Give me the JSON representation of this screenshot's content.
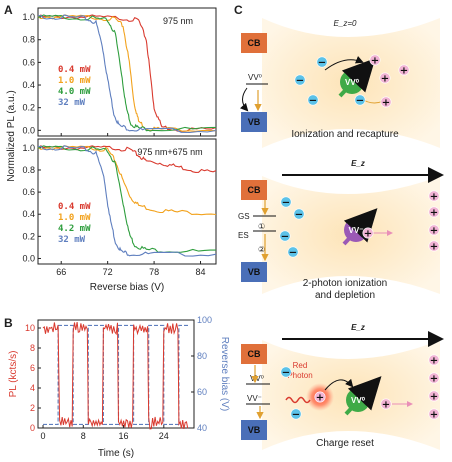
{
  "panel_labels": {
    "a": "A",
    "b": "B",
    "c": "C"
  },
  "colors": {
    "red": "#d93a2f",
    "orange": "#f2a21d",
    "green": "#2f9e3e",
    "blue": "#5f7fbf",
    "cb": "#e0703a",
    "vb": "#4a6fb8",
    "glow": "#fde8c4",
    "nv_green": "#3faa47",
    "nv_purple": "#9b59b6",
    "minus_fill": "#5cc2e8",
    "plus_fill": "#f2b3d4"
  },
  "panelA": {
    "ylabel": "Normalized PL (a.u.)",
    "xlabel": "Reverse bias (V)",
    "top": {
      "annotation": "975 nm",
      "legend": [
        "0.4 mW",
        "1.0 mW",
        "4.0 mW",
        "32 mW"
      ]
    },
    "bottom": {
      "annotation": "975 nm+675 nm",
      "legend": [
        "0.4 mW",
        "1.0 mW",
        "4.2 mW",
        "32 mW"
      ]
    },
    "yticks_labels": [
      "0.0",
      "0.2",
      "0.4",
      "0.6",
      "0.8",
      "1.0"
    ],
    "xticks_labels": [
      "66",
      "72",
      "78",
      "84"
    ]
  },
  "panelB": {
    "ylabel_left": "PL (kcts/s)",
    "ylabel_right": "Reverse bias (V)",
    "xlabel": "Time (s)",
    "left_ticks": [
      "0",
      "2",
      "4",
      "6",
      "8",
      "10"
    ],
    "right_ticks": [
      "40",
      "60",
      "80",
      "100"
    ],
    "x_ticks": [
      "0",
      "8",
      "16",
      "24"
    ]
  },
  "panelC": {
    "scene1": {
      "field": "E_z=0",
      "cb": "CB",
      "vb": "VB",
      "state": "VV⁰",
      "nv": "VV⁰",
      "caption": "Ionization and recapture"
    },
    "scene2": {
      "field": "E_z",
      "cb": "CB",
      "vb": "VB",
      "gs": "GS",
      "es": "ES",
      "step1": "①",
      "step2": "②",
      "nv": "VV⁻",
      "caption1": "2-photon ionization",
      "caption2": "and depletion"
    },
    "scene3": {
      "field": "E_z",
      "cb": "CB",
      "vb": "VB",
      "state1": "VV⁰",
      "state2": "VV⁻",
      "photon1": "Red",
      "photon2": "Photon",
      "nv": "VV⁰",
      "caption": "Charge reset"
    }
  },
  "chart_data": [
    {
      "type": "line",
      "title": "975 nm",
      "xlabel": "Reverse bias (V)",
      "ylabel": "Normalized PL (a.u.)",
      "xlim": [
        63,
        86
      ],
      "ylim": [
        -0.05,
        1.08
      ],
      "series": [
        {
          "name": "0.4 mW",
          "x": [
            63,
            66,
            70,
            74,
            76,
            77,
            77.5,
            78,
            79,
            81,
            86
          ],
          "values": [
            1.0,
            1.0,
            1.0,
            0.99,
            0.97,
            0.8,
            0.5,
            0.2,
            0.03,
            0.01,
            0.01
          ]
        },
        {
          "name": "1.0 mW",
          "x": [
            63,
            66,
            70,
            73,
            74,
            74.8,
            75.4,
            76,
            77,
            79,
            86
          ],
          "values": [
            1.0,
            1.0,
            1.0,
            0.98,
            0.92,
            0.6,
            0.25,
            0.08,
            0.02,
            0.01,
            0.01
          ]
        },
        {
          "name": "4.0 mW",
          "x": [
            63,
            66,
            70,
            72,
            73,
            73.8,
            74.4,
            75,
            76,
            78,
            86
          ],
          "values": [
            1.0,
            1.0,
            0.99,
            0.97,
            0.85,
            0.5,
            0.2,
            0.06,
            0.02,
            0.01,
            0.01
          ]
        },
        {
          "name": "32 mW",
          "x": [
            63,
            66,
            69,
            70.5,
            71.3,
            72,
            72.8,
            73.5,
            75,
            77,
            86
          ],
          "values": [
            1.0,
            1.0,
            0.99,
            0.95,
            0.75,
            0.45,
            0.15,
            0.04,
            0.01,
            0.0,
            0.0
          ]
        }
      ]
    },
    {
      "type": "line",
      "title": "975 nm+675 nm",
      "xlabel": "Reverse bias (V)",
      "ylabel": "Normalized PL (a.u.)",
      "xlim": [
        63,
        86
      ],
      "ylim": [
        -0.05,
        1.08
      ],
      "series": [
        {
          "name": "0.4 mW",
          "x": [
            63,
            66,
            70,
            73,
            75,
            76,
            77,
            79,
            81,
            83,
            86
          ],
          "values": [
            1.0,
            1.0,
            1.0,
            1.0,
            0.98,
            0.93,
            0.88,
            0.86,
            0.83,
            0.8,
            0.78
          ]
        },
        {
          "name": "1.0 mW",
          "x": [
            63,
            66,
            70,
            72,
            73,
            74,
            75,
            76,
            78,
            81,
            86
          ],
          "values": [
            1.0,
            1.0,
            1.0,
            0.98,
            0.88,
            0.7,
            0.55,
            0.48,
            0.44,
            0.42,
            0.41
          ]
        },
        {
          "name": "4.2 mW",
          "x": [
            63,
            66,
            70,
            72,
            73,
            74,
            74.8,
            75.5,
            77,
            80,
            86
          ],
          "values": [
            1.0,
            1.0,
            0.99,
            0.97,
            0.85,
            0.5,
            0.22,
            0.12,
            0.08,
            0.07,
            0.06
          ]
        },
        {
          "name": "32 mW",
          "x": [
            63,
            66,
            69,
            70.5,
            71.5,
            72.2,
            73,
            73.8,
            75,
            78,
            86
          ],
          "values": [
            1.0,
            1.0,
            0.99,
            0.95,
            0.75,
            0.4,
            0.15,
            0.06,
            0.04,
            0.04,
            0.04
          ]
        }
      ]
    },
    {
      "type": "line",
      "xlabel": "Time (s)",
      "ylabel": "PL (kcts/s)",
      "xlim": [
        -1,
        30
      ],
      "ylim": [
        0,
        10.8
      ],
      "y2label": "Reverse bias (V)",
      "y2lim": [
        40,
        100
      ],
      "series": [
        {
          "name": "PL (kcts/s)",
          "x": [
            0,
            3,
            3.3,
            5.8,
            6,
            8.8,
            9,
            11.8,
            12,
            14.8,
            15,
            17.8,
            18,
            20.8,
            21,
            23.8,
            24,
            26.8,
            27,
            29
          ],
          "values": [
            10,
            10,
            0.5,
            0.5,
            10,
            10,
            0.5,
            0.5,
            10,
            10,
            0.5,
            0.5,
            10,
            10,
            0.5,
            0.5,
            10,
            10,
            0.5,
            0.5
          ]
        },
        {
          "name": "Reverse bias (V)",
          "x": [
            0,
            3,
            3,
            6,
            6,
            9,
            9,
            12,
            12,
            15,
            15,
            18,
            18,
            21,
            21,
            24,
            24,
            27,
            27,
            29
          ],
          "values": [
            42,
            42,
            97,
            97,
            42,
            42,
            97,
            97,
            42,
            42,
            97,
            97,
            42,
            42,
            97,
            97,
            42,
            42,
            97,
            97
          ]
        }
      ]
    }
  ]
}
